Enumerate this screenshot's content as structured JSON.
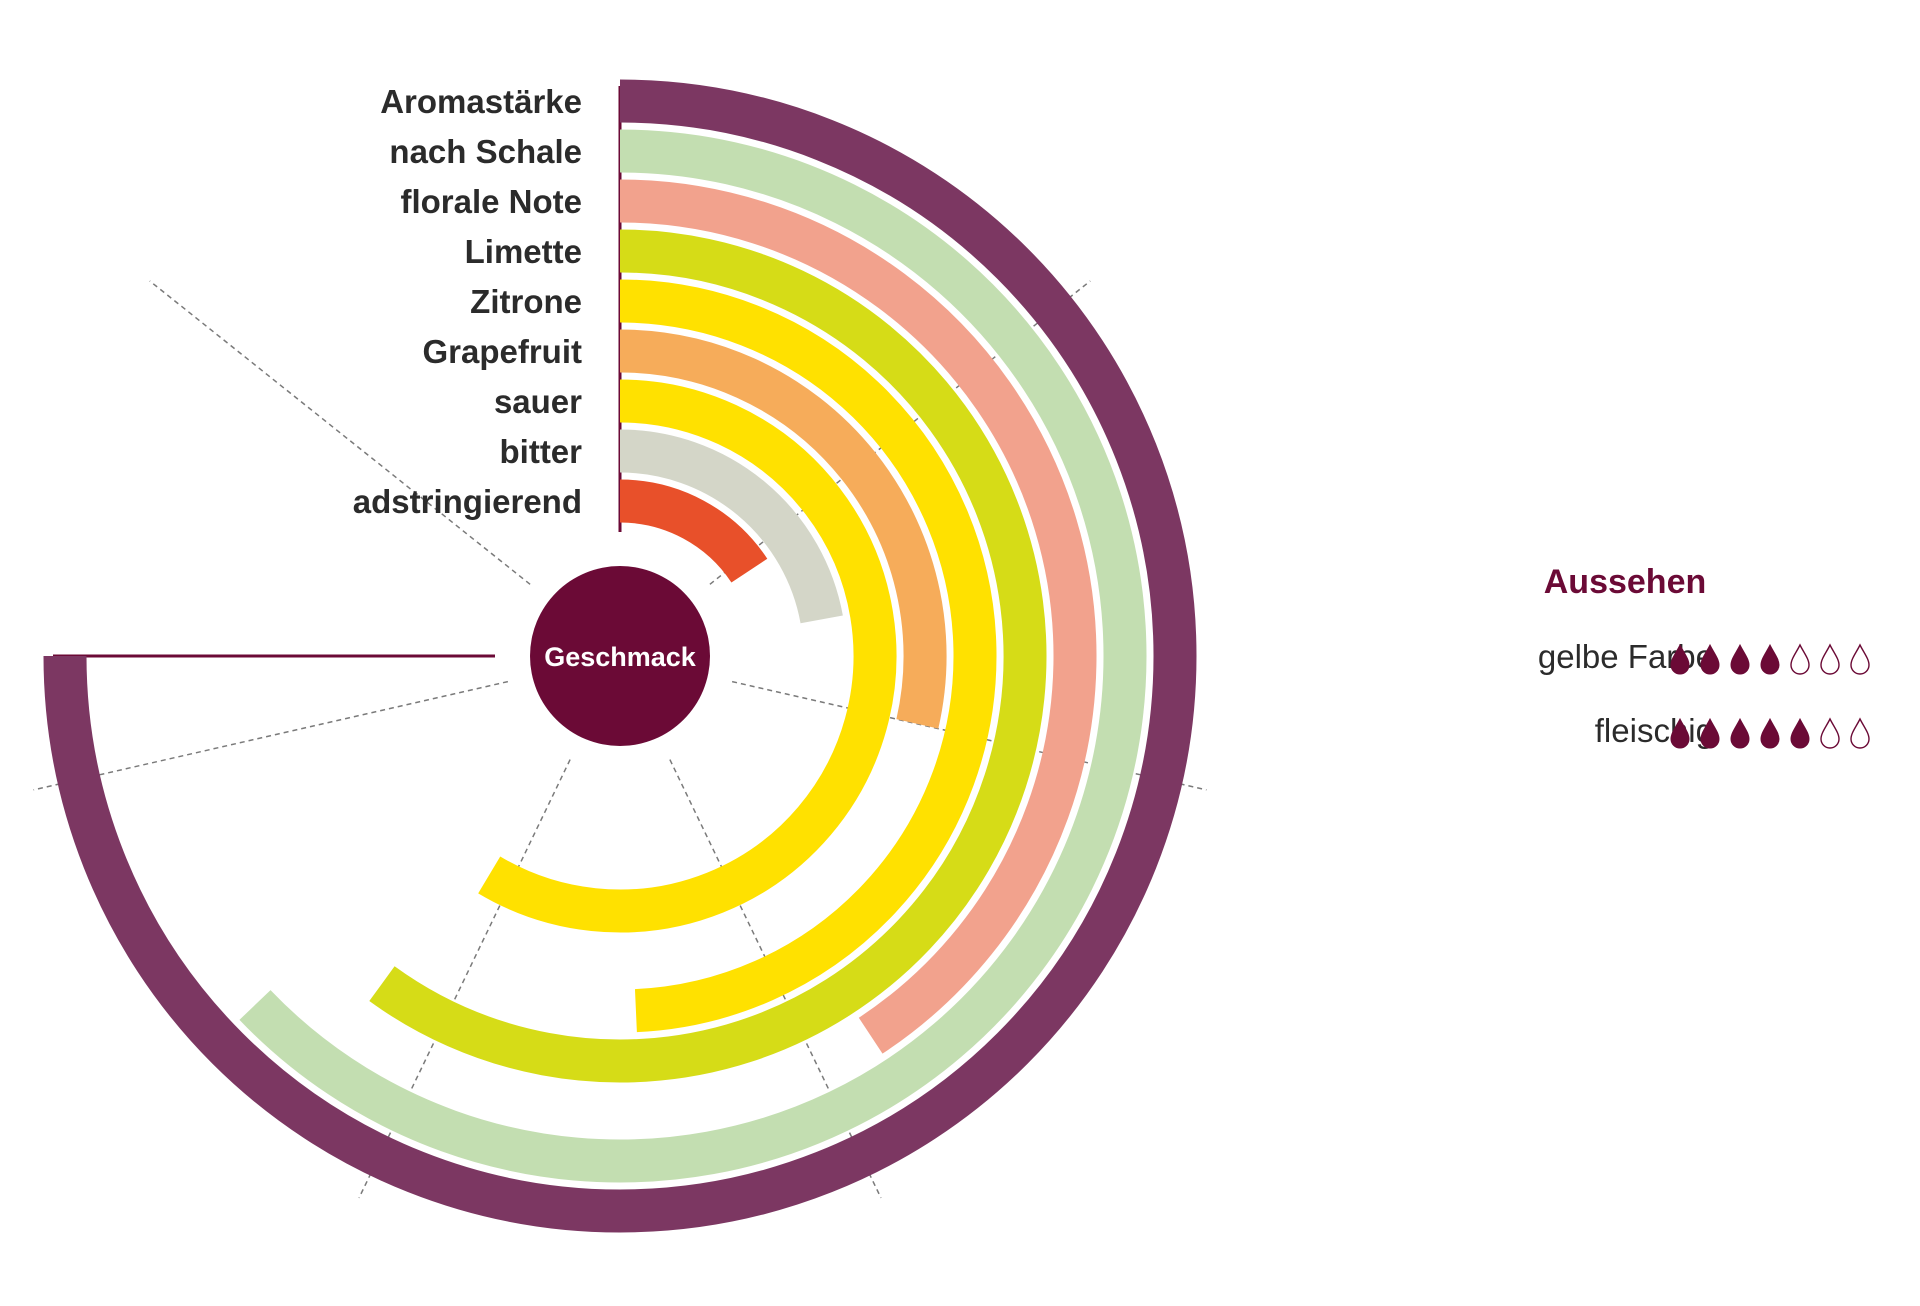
{
  "center_label": "Geschmack",
  "chart_data": {
    "type": "radial-bar",
    "title": "Geschmack",
    "scale_max": 7,
    "categories": [
      "Aromastärke",
      "nach Schale",
      "florale Note",
      "Limette",
      "Zitrone",
      "Grapefruit",
      "sauer",
      "bitter",
      "adstringierend"
    ],
    "values": [
      5.25,
      4.4,
      2.85,
      4.2,
      3.45,
      2.0,
      4.1,
      1.55,
      1.1
    ],
    "colors": [
      "#7c3762",
      "#c3deb1",
      "#f2a28d",
      "#d6dc17",
      "#ffe100",
      "#f6ac5a",
      "#ffe100",
      "#d4d6c8",
      "#e8502a"
    ]
  },
  "legend": {
    "title": "Aussehen",
    "drop_color": "#6b0a36",
    "max": 7,
    "items": [
      {
        "label": "gelbe Farbe",
        "value": 4
      },
      {
        "label": "fleischig",
        "value": 5
      }
    ]
  }
}
